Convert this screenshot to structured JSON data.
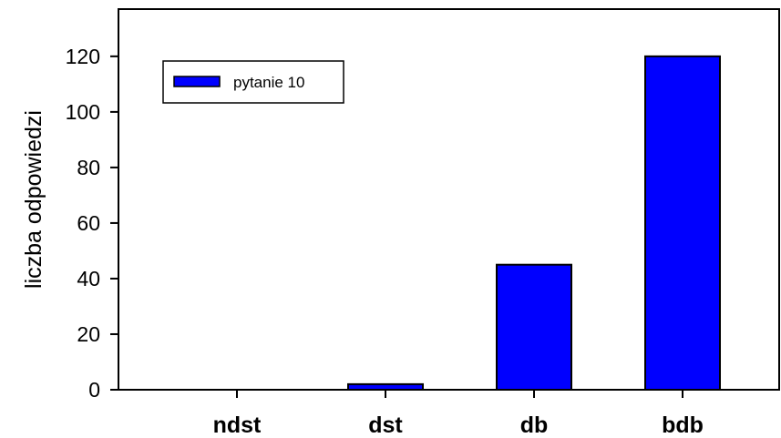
{
  "chart_data": {
    "type": "bar",
    "categories": [
      "ndst",
      "dst",
      "db",
      "bdb"
    ],
    "series": [
      {
        "name": "pytanie 10",
        "values": [
          0,
          2,
          45,
          120
        ]
      }
    ],
    "ylabel": "liczba odpowiedzi",
    "xlabel": "",
    "title": "",
    "ylim": [
      0,
      137
    ],
    "yticks": [
      0,
      20,
      40,
      60,
      80,
      100,
      120
    ],
    "grid": false,
    "legend": "top-left",
    "colors": {
      "bar": "#0000ff",
      "stroke": "#000000"
    }
  }
}
